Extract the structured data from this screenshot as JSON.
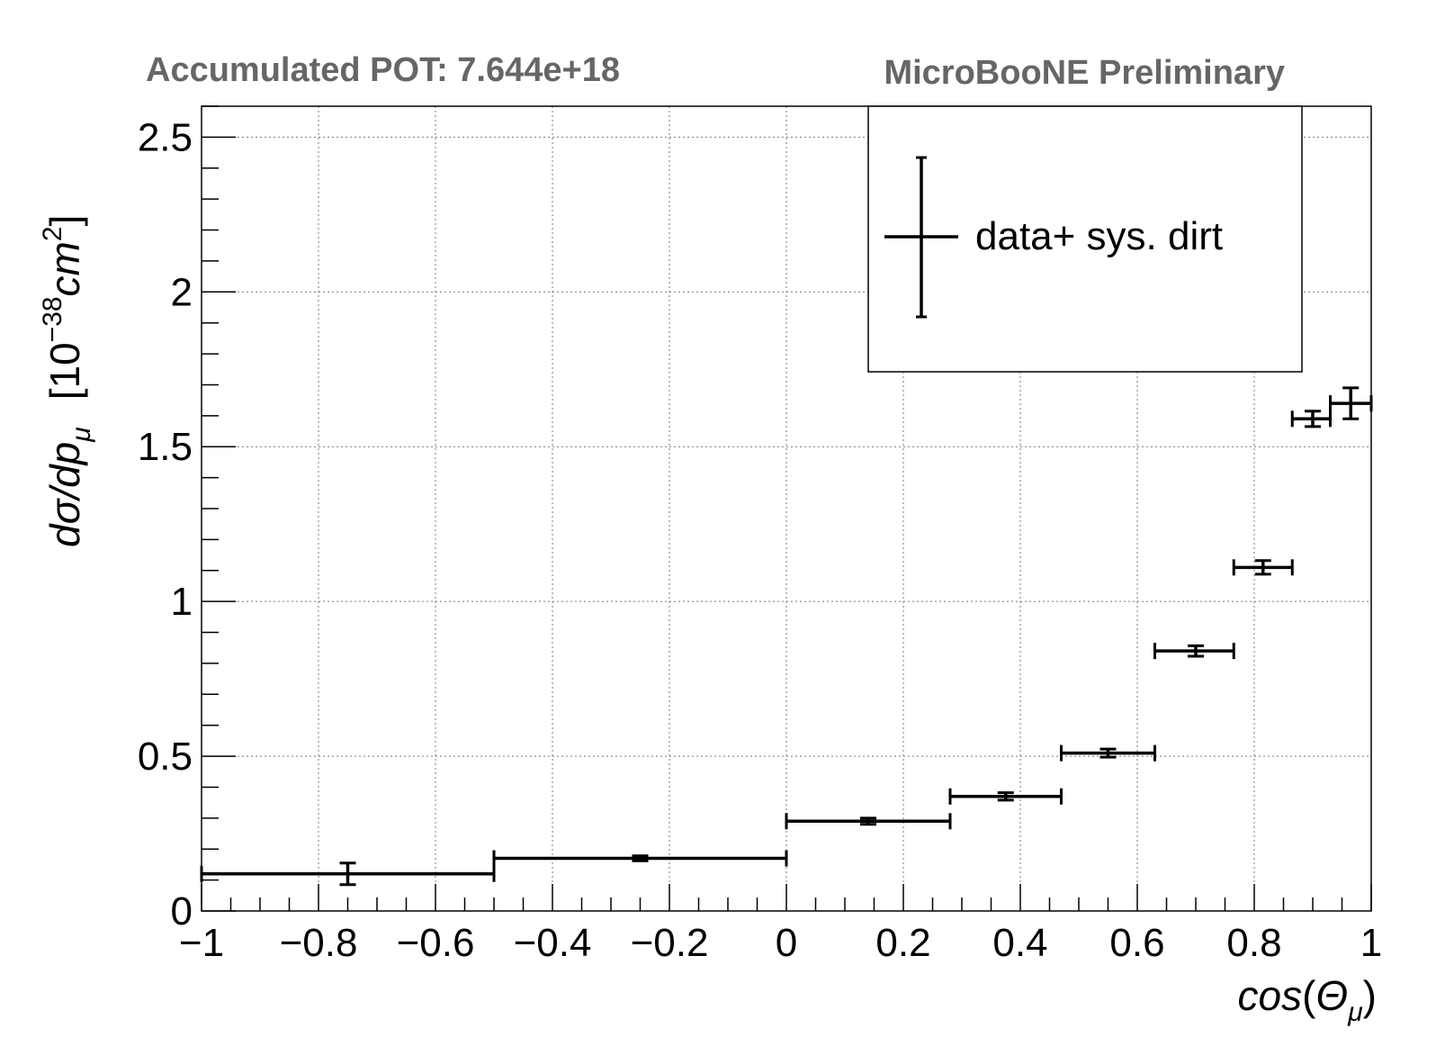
{
  "header": {
    "pot_text": "Accumulated POT: 7.644e+18",
    "experiment_text": "MicroBooNE Preliminary"
  },
  "chart_data": {
    "type": "scatter",
    "xlabel": "cos(Θ_μ)",
    "ylabel": "dσ/dp_μ [10^-38 cm^2]",
    "xlim": [
      -1,
      1
    ],
    "ylim": [
      0,
      2.6
    ],
    "grid": true,
    "legend_position": "top-right",
    "x_ticks": [
      -1,
      -0.8,
      -0.6,
      -0.4,
      -0.2,
      0,
      0.2,
      0.4,
      0.6,
      0.8,
      1
    ],
    "x_tick_labels": [
      "−1",
      "−0.8",
      "−0.6",
      "−0.4",
      "−0.2",
      "0",
      "0.2",
      "0.4",
      "0.6",
      "0.8",
      "1"
    ],
    "y_ticks": [
      0,
      0.5,
      1,
      1.5,
      2,
      2.5
    ],
    "y_tick_labels": [
      "0",
      "0.5",
      "1",
      "1.5",
      "2",
      "2.5"
    ],
    "series": [
      {
        "name": "data+ sys. dirt",
        "color": "#000000",
        "points": [
          {
            "x": -0.75,
            "xlow": -1.0,
            "xhigh": -0.5,
            "y": 0.12,
            "yerr": 0.035
          },
          {
            "x": -0.25,
            "xlow": -0.5,
            "xhigh": 0.0,
            "y": 0.17,
            "yerr": 0.008
          },
          {
            "x": 0.14,
            "xlow": 0.0,
            "xhigh": 0.28,
            "y": 0.29,
            "yerr": 0.01
          },
          {
            "x": 0.375,
            "xlow": 0.28,
            "xhigh": 0.47,
            "y": 0.37,
            "yerr": 0.012
          },
          {
            "x": 0.55,
            "xlow": 0.47,
            "xhigh": 0.63,
            "y": 0.51,
            "yerr": 0.013
          },
          {
            "x": 0.7,
            "xlow": 0.63,
            "xhigh": 0.765,
            "y": 0.84,
            "yerr": 0.017
          },
          {
            "x": 0.815,
            "xlow": 0.765,
            "xhigh": 0.865,
            "y": 1.11,
            "yerr": 0.022
          },
          {
            "x": 0.9,
            "xlow": 0.865,
            "xhigh": 0.93,
            "y": 1.59,
            "yerr": 0.025
          },
          {
            "x": 0.965,
            "xlow": 0.93,
            "xhigh": 1.0,
            "y": 1.64,
            "yerr": 0.05
          }
        ]
      }
    ]
  }
}
